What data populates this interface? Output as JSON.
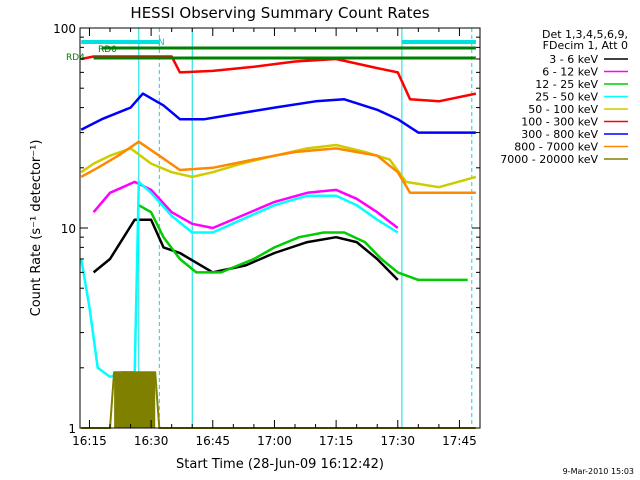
{
  "chart_data": {
    "type": "line",
    "title": "HESSI Observing Summary Count Rates",
    "xlabel": "Start Time (28-Jun-09 16:12:42)",
    "ylabel": "Count Rate (s⁻¹ detector⁻¹)",
    "y_scale": "log",
    "ylim": [
      1,
      100
    ],
    "xlim": [
      "16:12:42",
      "17:50"
    ],
    "x_ticks": [
      "16:15",
      "16:30",
      "16:45",
      "17:00",
      "17:15",
      "17:30",
      "17:45"
    ],
    "y_ticks": [
      {
        "value": 1,
        "label": "1"
      },
      {
        "value": 10,
        "label": "10"
      },
      {
        "value": 100,
        "label": "100"
      }
    ],
    "legend_header": [
      "Det 1,3,4,5,6,9,",
      "FDecim 1, Att 0"
    ],
    "series": [
      {
        "name": "3 - 6 keV",
        "color": "#000000",
        "points": [
          [
            "16:16",
            6
          ],
          [
            "16:20",
            7
          ],
          [
            "16:26",
            11
          ],
          [
            "16:30",
            11
          ],
          [
            "16:33",
            8
          ],
          [
            "16:37",
            7.5
          ],
          [
            "16:45",
            6
          ],
          [
            "16:53",
            6.5
          ],
          [
            "17:00",
            7.5
          ],
          [
            "17:08",
            8.5
          ],
          [
            "17:15",
            9
          ],
          [
            "17:20",
            8.5
          ],
          [
            "17:25",
            7
          ],
          [
            "17:30",
            5.5
          ]
        ]
      },
      {
        "name": "6 - 12 keV",
        "color": "#ff00ff",
        "points": [
          [
            "16:16",
            12
          ],
          [
            "16:20",
            15
          ],
          [
            "16:26",
            17
          ],
          [
            "16:30",
            15.5
          ],
          [
            "16:35",
            12
          ],
          [
            "16:40",
            10.5
          ],
          [
            "16:45",
            10
          ],
          [
            "16:52",
            11.5
          ],
          [
            "17:00",
            13.5
          ],
          [
            "17:08",
            15
          ],
          [
            "17:15",
            15.5
          ],
          [
            "17:20",
            14
          ],
          [
            "17:25",
            12
          ],
          [
            "17:30",
            10
          ]
        ]
      },
      {
        "name": "12 - 25 keV",
        "color": "#00cc00",
        "points": [
          [
            "16:27",
            13
          ],
          [
            "16:30",
            12
          ],
          [
            "16:33",
            9
          ],
          [
            "16:37",
            7
          ],
          [
            "16:41",
            6
          ],
          [
            "16:47",
            6
          ],
          [
            "16:55",
            7
          ],
          [
            "17:00",
            8
          ],
          [
            "17:06",
            9
          ],
          [
            "17:12",
            9.5
          ],
          [
            "17:17",
            9.5
          ],
          [
            "17:22",
            8.5
          ],
          [
            "17:26",
            7
          ],
          [
            "17:30",
            6
          ],
          [
            "17:35",
            5.5
          ],
          [
            "17:47",
            5.5
          ]
        ]
      },
      {
        "name": "25 - 50 keV",
        "color": "#00ffff",
        "points": [
          [
            "16:13",
            7
          ],
          [
            "16:15",
            4
          ],
          [
            "16:17",
            2
          ],
          [
            "16:20",
            1.8
          ],
          [
            "16:23",
            1.9
          ],
          [
            "16:26",
            1.9
          ],
          [
            "16:27",
            17
          ],
          [
            "16:30",
            15
          ],
          [
            "16:35",
            11.5
          ],
          [
            "16:40",
            9.5
          ],
          [
            "16:45",
            9.5
          ],
          [
            "16:52",
            11
          ],
          [
            "17:00",
            13
          ],
          [
            "17:08",
            14.5
          ],
          [
            "17:15",
            14.5
          ],
          [
            "17:20",
            13
          ],
          [
            "17:25",
            11
          ],
          [
            "17:30",
            9.5
          ]
        ]
      },
      {
        "name": "50 - 100 keV",
        "color": "#cccc00",
        "points": [
          [
            "16:13",
            19
          ],
          [
            "16:16",
            21
          ],
          [
            "16:20",
            23
          ],
          [
            "16:25",
            25
          ],
          [
            "16:30",
            21
          ],
          [
            "16:35",
            19
          ],
          [
            "16:40",
            18
          ],
          [
            "16:45",
            19
          ],
          [
            "16:52",
            21
          ],
          [
            "17:00",
            23
          ],
          [
            "17:08",
            25
          ],
          [
            "17:15",
            26
          ],
          [
            "17:22",
            24
          ],
          [
            "17:28",
            22
          ],
          [
            "17:32",
            17
          ],
          [
            "17:40",
            16
          ],
          [
            "17:49",
            18
          ]
        ]
      },
      {
        "name": "100 - 300 keV",
        "color": "#ff0000",
        "points": [
          [
            "16:13",
            70
          ],
          [
            "16:16",
            72
          ],
          [
            "16:35",
            72
          ],
          [
            "16:37",
            60
          ],
          [
            "16:45",
            61
          ],
          [
            "16:55",
            64
          ],
          [
            "17:05",
            68
          ],
          [
            "17:15",
            70
          ],
          [
            "17:25",
            63
          ],
          [
            "17:30",
            60
          ],
          [
            "17:33",
            44
          ],
          [
            "17:40",
            43
          ],
          [
            "17:49",
            47
          ]
        ]
      },
      {
        "name": "300 - 800 keV",
        "color": "#0000ff",
        "points": [
          [
            "16:13",
            31
          ],
          [
            "16:18",
            35
          ],
          [
            "16:25",
            40
          ],
          [
            "16:28",
            47
          ],
          [
            "16:33",
            41
          ],
          [
            "16:37",
            35
          ],
          [
            "16:43",
            35
          ],
          [
            "16:50",
            37
          ],
          [
            "17:00",
            40
          ],
          [
            "17:10",
            43
          ],
          [
            "17:17",
            44
          ],
          [
            "17:25",
            39
          ],
          [
            "17:30",
            35
          ],
          [
            "17:35",
            30
          ],
          [
            "17:49",
            30
          ]
        ]
      },
      {
        "name": "800 - 7000 keV",
        "color": "#ff8800",
        "points": [
          [
            "16:13",
            18
          ],
          [
            "16:17",
            20
          ],
          [
            "16:22",
            23
          ],
          [
            "16:27",
            27
          ],
          [
            "16:32",
            23
          ],
          [
            "16:37",
            19.5
          ],
          [
            "16:45",
            20
          ],
          [
            "16:55",
            22
          ],
          [
            "17:05",
            24
          ],
          [
            "17:15",
            25
          ],
          [
            "17:25",
            23
          ],
          [
            "17:30",
            19
          ],
          [
            "17:33",
            15
          ],
          [
            "17:49",
            15
          ]
        ]
      },
      {
        "name": "7000 - 20000 keV",
        "color": "#808000",
        "points": [
          [
            "16:13",
            1
          ],
          [
            "16:20",
            1
          ],
          [
            "16:21",
            1.9
          ],
          [
            "16:31",
            1.9
          ],
          [
            "16:32",
            1
          ],
          [
            "17:49",
            1
          ]
        ]
      }
    ],
    "annotations": [
      {
        "text": "RD0",
        "color": "#008000"
      },
      {
        "text": "RD4",
        "color": "#008000"
      },
      {
        "text": "N",
        "color": "#00cccc"
      }
    ],
    "intervals": {
      "night_bars": [
        [
          "16:13",
          "16:32"
        ],
        [
          "17:31",
          "17:49"
        ]
      ],
      "rd_bars": [
        {
          "label_index": 0,
          "from": "16:18",
          "to": "17:49"
        },
        {
          "label_index": 1,
          "from": "16:16",
          "to": "17:49"
        }
      ],
      "solid_markers": [
        "16:27",
        "16:40",
        "17:31"
      ],
      "dashed_markers": [
        "16:32",
        "17:48"
      ]
    },
    "grid": false
  },
  "footer": {
    "date_stamp": "9-Mar-2010 15:03"
  }
}
